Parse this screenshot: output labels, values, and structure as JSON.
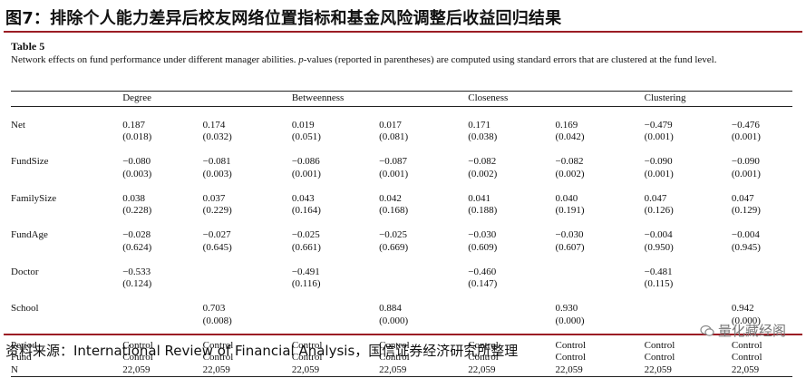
{
  "figure_title": "图7：排除个人能力差异后校友网络位置指标和基金风险调整后收益回归结果",
  "table": {
    "label": "Table 5",
    "caption_pre": "Network effects on fund performance under different manager abilities. ",
    "caption_italic": "p",
    "caption_post": "-values (reported in parentheses) are computed using standard errors that are clustered at the fund level.",
    "groups": [
      "Degree",
      "Betweenness",
      "Closeness",
      "Clustering"
    ],
    "rows": [
      {
        "label": "Net",
        "values": [
          "0.187",
          "0.174",
          "0.019",
          "0.017",
          "0.171",
          "0.169",
          "−0.479",
          "−0.476"
        ],
        "pvalues": [
          "(0.018)",
          "(0.032)",
          "(0.051)",
          "(0.081)",
          "(0.038)",
          "(0.042)",
          "(0.001)",
          "(0.001)"
        ]
      },
      {
        "label": "FundSize",
        "values": [
          "−0.080",
          "−0.081",
          "−0.086",
          "−0.087",
          "−0.082",
          "−0.082",
          "−0.090",
          "−0.090"
        ],
        "pvalues": [
          "(0.003)",
          "(0.003)",
          "(0.001)",
          "(0.001)",
          "(0.002)",
          "(0.002)",
          "(0.001)",
          "(0.001)"
        ]
      },
      {
        "label": "FamilySize",
        "values": [
          "0.038",
          "0.037",
          "0.043",
          "0.042",
          "0.041",
          "0.040",
          "0.047",
          "0.047"
        ],
        "pvalues": [
          "(0.228)",
          "(0.229)",
          "(0.164)",
          "(0.168)",
          "(0.188)",
          "(0.191)",
          "(0.126)",
          "(0.129)"
        ]
      },
      {
        "label": "FundAge",
        "values": [
          "−0.028",
          "−0.027",
          "−0.025",
          "−0.025",
          "−0.030",
          "−0.030",
          "−0.004",
          "−0.004"
        ],
        "pvalues": [
          "(0.624)",
          "(0.645)",
          "(0.661)",
          "(0.669)",
          "(0.609)",
          "(0.607)",
          "(0.950)",
          "(0.945)"
        ]
      },
      {
        "label": "Doctor",
        "values": [
          "−0.533",
          "",
          "−0.491",
          "",
          "−0.460",
          "",
          "−0.481",
          ""
        ],
        "pvalues": [
          "(0.124)",
          "",
          "(0.116)",
          "",
          "(0.147)",
          "",
          "(0.115)",
          ""
        ]
      },
      {
        "label": "School",
        "values": [
          "",
          "0.703",
          "",
          "0.884",
          "",
          "0.930",
          "",
          "0.942"
        ],
        "pvalues": [
          "",
          "(0.008)",
          "",
          "(0.000)",
          "",
          "(0.000)",
          "",
          "(0.000)"
        ]
      }
    ],
    "footer_rows": [
      {
        "label": "Period",
        "values": [
          "Control",
          "Control",
          "Control",
          "Control",
          "Control",
          "Control",
          "Control",
          "Control"
        ]
      },
      {
        "label": "Fund",
        "values": [
          "Control",
          "Control",
          "Control",
          "Control",
          "Control",
          "Control",
          "Control",
          "Control"
        ]
      },
      {
        "label": "N",
        "values": [
          "22,059",
          "22,059",
          "22,059",
          "22,059",
          "22,059",
          "22,059",
          "22,059",
          "22,059"
        ]
      }
    ]
  },
  "source": "资料来源：International Review of Financial Analysis，国信证券经济研究所整理",
  "watermark": "量化藏经阁",
  "colors": {
    "accent": "#9b1c24"
  }
}
